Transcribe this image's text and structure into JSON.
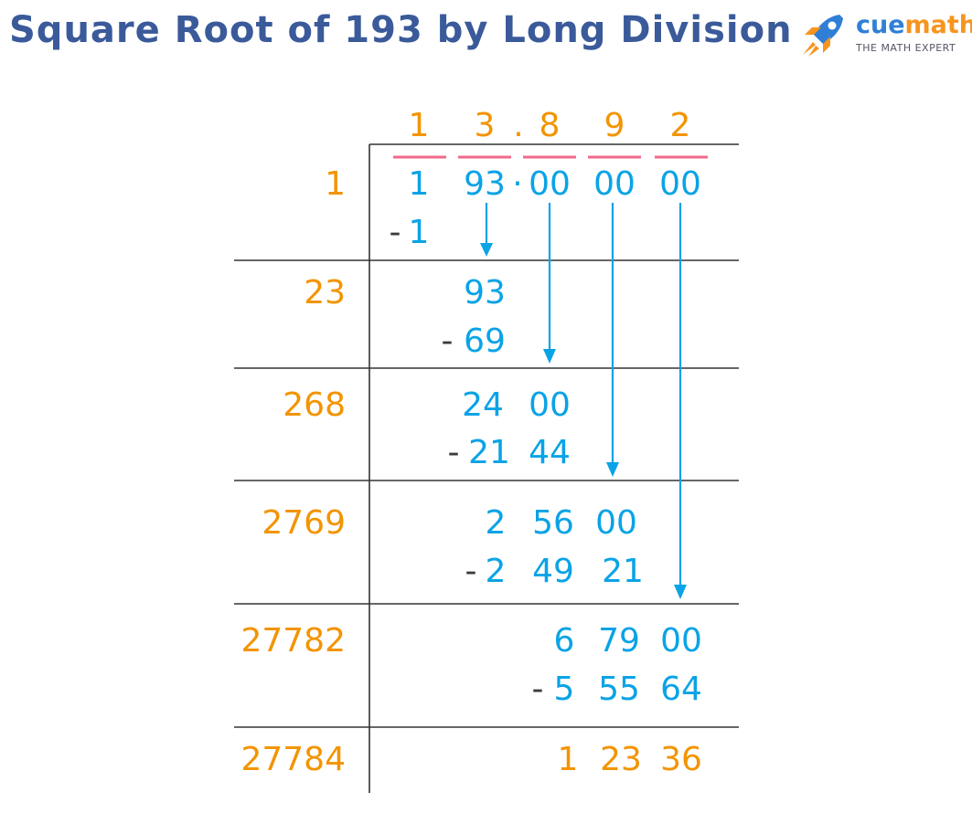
{
  "title": "Square Root of 193 by Long Division",
  "logo": {
    "name_part1": "cue",
    "name_part2": "math",
    "tagline": "THE MATH EXPERT",
    "icon": "rocket-icon"
  },
  "quotient": {
    "digits": [
      "1",
      "3",
      "8",
      "9",
      "2"
    ],
    "decimal_point": "."
  },
  "dividend": {
    "pairs": [
      "1",
      "93",
      "00",
      "00",
      "00"
    ],
    "decimal_point": "·"
  },
  "divisors": [
    "1",
    "23",
    "268",
    "2769",
    "27782",
    "27784"
  ],
  "steps": [
    {
      "subtract_minus": "-",
      "subtract": [
        "1"
      ]
    },
    {
      "remainder": [
        "93"
      ],
      "subtract_minus": "-",
      "subtract": [
        "69"
      ]
    },
    {
      "remainder": [
        "24",
        "00"
      ],
      "subtract_minus": "-",
      "subtract": [
        "21",
        "44"
      ]
    },
    {
      "remainder": [
        "2",
        "56",
        "00"
      ],
      "subtract_minus": "-",
      "subtract": [
        "2",
        "49",
        "21"
      ]
    },
    {
      "remainder": [
        "6",
        "79",
        "00"
      ],
      "subtract_minus": "-",
      "subtract": [
        "5",
        "55",
        "64"
      ]
    }
  ],
  "final_remainder": {
    "values": [
      "1",
      "23",
      "36"
    ]
  },
  "colors": {
    "title": "#3a5a9a",
    "quotient": "#f39400",
    "work": "#0aa3e6",
    "minus": "#3b3b3b",
    "pair_marker": "#f06a8a",
    "grid": "#333333"
  }
}
